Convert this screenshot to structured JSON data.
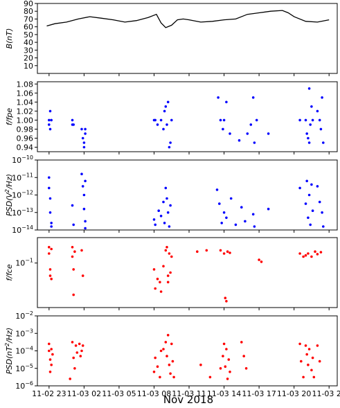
{
  "figure": {
    "xlabel": "Nov 2018",
    "x_ticks": [
      "11-02 23",
      "11-03 02",
      "11-03 05",
      "11-03 08",
      "11-03 11",
      "11-03 14",
      "11-03 17",
      "11-03 20",
      "11-03 23"
    ],
    "x_range_hours": [
      22.0,
      47.7
    ]
  },
  "chart_data": [
    {
      "type": "line",
      "ylabel": "B(nT)",
      "ylim": [
        0,
        90
      ],
      "yticks": [
        "10",
        "20",
        "30",
        "40",
        "50",
        "60",
        "70",
        "80",
        "90"
      ],
      "color": "#000000",
      "x_hours": [
        22.8,
        23.5,
        24.5,
        25.5,
        26.5,
        27.5,
        28.5,
        29.5,
        30.5,
        31.5,
        32.2,
        32.6,
        33.0,
        33.5,
        34.0,
        34.5,
        35.0,
        36.0,
        37.0,
        38.0,
        39.0,
        40.0,
        41.0,
        42.0,
        43.0,
        43.5,
        44.0,
        45.0,
        46.0,
        47.0
      ],
      "y": [
        61,
        64,
        66,
        70,
        73,
        71,
        69,
        66,
        68,
        72,
        76,
        65,
        59,
        62,
        69,
        70,
        69,
        66,
        67,
        69,
        70,
        76,
        78,
        80,
        81,
        78,
        73,
        67,
        66,
        69
      ]
    },
    {
      "type": "scatter",
      "ylabel": "f/fpe",
      "ylim": [
        0.93,
        1.085
      ],
      "yticks": [
        "0.94",
        "0.96",
        "0.98",
        "1.00",
        "1.02",
        "1.04",
        "1.06",
        "1.08"
      ],
      "color": "#0000ff",
      "x_hours": [
        23.0,
        23.0,
        23.1,
        23.1,
        23.2,
        25.0,
        25.0,
        25.1,
        25.8,
        25.9,
        26.0,
        26.0,
        26.1,
        26.1,
        32.0,
        32.1,
        32.3,
        32.6,
        32.8,
        32.9,
        33.0,
        33.1,
        33.2,
        33.3,
        33.4,
        33.5,
        37.5,
        37.7,
        37.9,
        38.0,
        38.2,
        38.5,
        39.3,
        40.0,
        40.3,
        40.5,
        40.6,
        40.8,
        41.8,
        44.5,
        45.0,
        45.1,
        45.2,
        45.3,
        45.3,
        45.4,
        45.5,
        45.6,
        46.0,
        46.2,
        46.3,
        46.4,
        46.5
      ],
      "y": [
        1.0,
        0.99,
        1.02,
        0.98,
        1.0,
        1.0,
        0.99,
        0.99,
        0.98,
        0.96,
        0.95,
        0.94,
        0.98,
        0.97,
        1.0,
        1.0,
        0.99,
        1.0,
        0.98,
        1.02,
        1.03,
        0.99,
        1.04,
        0.94,
        0.95,
        1.0,
        1.05,
        1.0,
        0.98,
        1.0,
        1.04,
        0.97,
        0.955,
        0.97,
        0.99,
        1.05,
        0.95,
        1.0,
        0.97,
        1.0,
        1.0,
        0.97,
        0.96,
        1.07,
        0.95,
        0.99,
        1.03,
        1.0,
        1.02,
        1.0,
        0.98,
        1.05,
        0.95
      ]
    },
    {
      "type": "scatter",
      "ylabel": "PSD(V^2/Hz)",
      "ylim_exp": [
        -14,
        -10
      ],
      "yticks": [
        "10^-14",
        "10^-13",
        "10^-12",
        "10^-11",
        "10^-10"
      ],
      "color": "#0000ff",
      "x_hours": [
        23.0,
        23.0,
        23.1,
        23.1,
        23.2,
        23.2,
        25.0,
        25.1,
        25.8,
        25.9,
        26.0,
        26.0,
        26.1,
        26.1,
        26.1,
        32.0,
        32.1,
        32.4,
        32.6,
        32.8,
        32.9,
        33.0,
        33.1,
        33.2,
        33.3,
        33.4,
        37.4,
        37.6,
        37.8,
        38.0,
        38.2,
        38.6,
        39.0,
        39.5,
        39.8,
        40.5,
        40.6,
        41.8,
        44.5,
        45.0,
        45.1,
        45.2,
        45.3,
        45.4,
        45.5,
        45.6,
        46.0,
        46.2,
        46.4,
        46.5
      ],
      "y_exp": [
        -11.0,
        -11.6,
        -12.2,
        -13.0,
        -13.6,
        -13.8,
        -12.6,
        -13.7,
        -10.8,
        -11.5,
        -12.0,
        -12.8,
        -13.5,
        -13.9,
        -11.2,
        -13.4,
        -13.7,
        -12.9,
        -13.2,
        -12.4,
        -13.6,
        -11.6,
        -12.2,
        -13.0,
        -13.8,
        -12.6,
        -11.7,
        -12.5,
        -13.6,
        -13.0,
        -13.3,
        -12.2,
        -13.7,
        -12.7,
        -13.5,
        -13.1,
        -13.8,
        -12.8,
        -11.6,
        -12.5,
        -11.2,
        -13.3,
        -12.0,
        -13.7,
        -11.4,
        -12.9,
        -11.5,
        -12.4,
        -13.0,
        -13.8
      ]
    },
    {
      "type": "scatter",
      "ylabel": "f/fce",
      "ylim_exp": [
        -1.7,
        -0.6
      ],
      "yticks": [
        "10^-1"
      ],
      "color": "#ff0000",
      "x_hours": [
        23.0,
        23.0,
        23.1,
        23.1,
        23.2,
        23.2,
        25.0,
        25.0,
        25.1,
        25.1,
        25.2,
        25.8,
        25.9,
        32.0,
        32.1,
        32.3,
        32.5,
        32.6,
        32.8,
        33.0,
        33.1,
        33.2,
        33.2,
        33.3,
        33.4,
        33.5,
        35.7,
        36.5,
        37.7,
        38.0,
        38.1,
        38.2,
        38.3,
        38.5,
        41.0,
        41.2,
        44.5,
        44.8,
        45.0,
        45.2,
        45.5,
        45.8,
        46.0,
        46.3
      ],
      "y_exp": [
        -0.75,
        -0.85,
        -1.1,
        -1.2,
        -1.25,
        -0.78,
        -0.75,
        -0.9,
        -1.1,
        -1.5,
        -0.82,
        -0.8,
        -1.2,
        -1.1,
        -1.4,
        -1.25,
        -1.3,
        -1.45,
        -1.05,
        -0.8,
        -0.75,
        -1.2,
        -1.3,
        -0.85,
        -1.15,
        -0.9,
        -0.82,
        -0.8,
        -0.8,
        -0.85,
        -1.55,
        -1.6,
        -0.82,
        -0.84,
        -0.95,
        -0.98,
        -0.85,
        -0.9,
        -0.88,
        -0.85,
        -0.9,
        -0.82,
        -0.86,
        -0.83
      ]
    },
    {
      "type": "scatter",
      "ylabel": "PSD(nT^2/Hz)",
      "ylim_exp": [
        -6,
        -2
      ],
      "yticks": [
        "10^-6",
        "10^-5",
        "10^-4",
        "10^-3",
        "10^-2"
      ],
      "color": "#ff0000",
      "x_hours": [
        23.0,
        23.0,
        23.1,
        23.1,
        23.2,
        23.2,
        23.3,
        24.8,
        25.0,
        25.1,
        25.2,
        25.3,
        25.4,
        25.6,
        25.7,
        25.8,
        25.9,
        32.0,
        32.1,
        32.3,
        32.5,
        32.6,
        32.8,
        33.0,
        33.1,
        33.2,
        33.3,
        33.4,
        33.5,
        33.6,
        33.7,
        36.0,
        36.8,
        37.7,
        37.9,
        38.0,
        38.1,
        38.2,
        38.3,
        38.4,
        38.5,
        39.5,
        39.7,
        39.9,
        44.5,
        44.6,
        44.8,
        45.0,
        45.1,
        45.2,
        45.3,
        45.5,
        45.6,
        45.7,
        46.0,
        46.2
      ],
      "y_exp": [
        -3.6,
        -4.0,
        -4.5,
        -5.2,
        -3.9,
        -4.8,
        -4.2,
        -5.6,
        -3.5,
        -4.4,
        -5.0,
        -3.7,
        -4.1,
        -3.6,
        -4.3,
        -4.0,
        -3.7,
        -5.2,
        -4.4,
        -4.9,
        -5.5,
        -4.0,
        -3.9,
        -3.5,
        -4.3,
        -3.1,
        -4.8,
        -5.3,
        -3.6,
        -4.6,
        -5.5,
        -4.8,
        -5.5,
        -5.0,
        -4.3,
        -3.6,
        -4.9,
        -3.9,
        -5.6,
        -4.5,
        -5.2,
        -3.5,
        -4.3,
        -5.0,
        -3.6,
        -4.6,
        -5.5,
        -3.7,
        -4.2,
        -4.8,
        -3.9,
        -5.1,
        -4.4,
        -5.5,
        -3.7,
        -4.6
      ]
    }
  ]
}
